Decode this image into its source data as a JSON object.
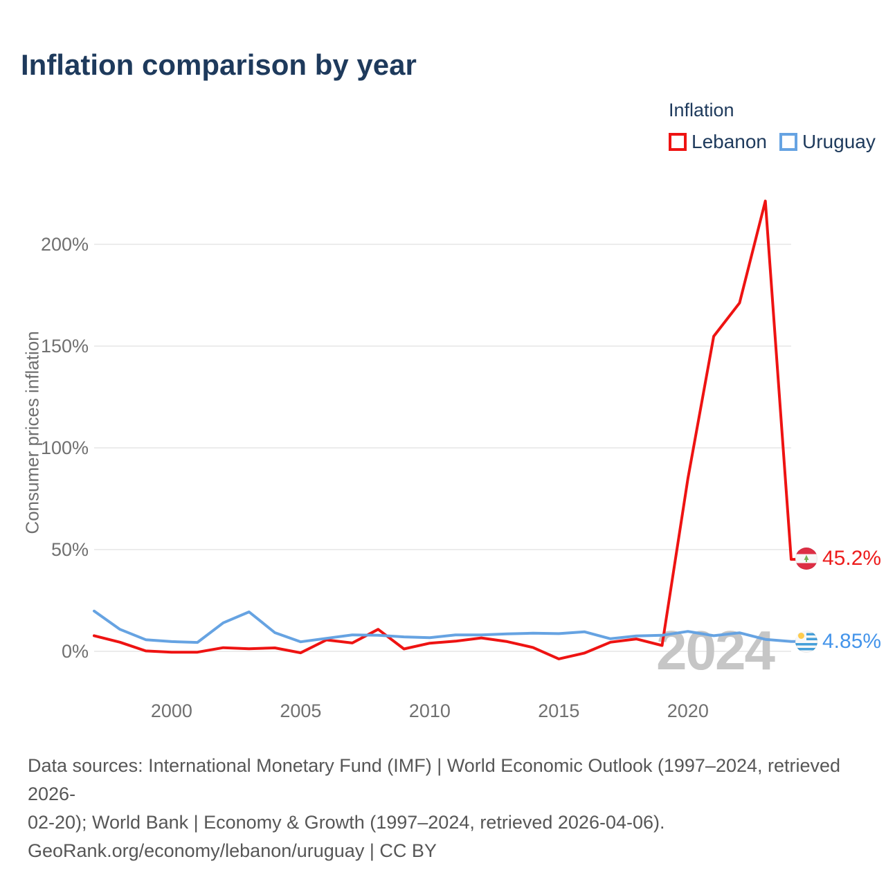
{
  "header": {
    "title": "Inflation comparison by year"
  },
  "legend": {
    "title": "Inflation",
    "items": [
      {
        "label": "Lebanon"
      },
      {
        "label": "Uruguay"
      }
    ]
  },
  "chart_data": {
    "type": "line",
    "title": "Inflation comparison by year",
    "ylabel": "Consumer prices inflation",
    "xlabel": "",
    "x": [
      1997,
      1998,
      1999,
      2000,
      2001,
      2002,
      2003,
      2004,
      2005,
      2006,
      2007,
      2008,
      2009,
      2010,
      2011,
      2012,
      2013,
      2014,
      2015,
      2016,
      2017,
      2018,
      2019,
      2020,
      2021,
      2022,
      2023,
      2024
    ],
    "series": [
      {
        "name": "Lebanon",
        "color": "#ee1312",
        "label_color": "#ed1c1c",
        "end_label": "45.2%",
        "values": [
          7.7,
          4.5,
          0.2,
          -0.4,
          -0.4,
          1.8,
          1.3,
          1.7,
          -0.7,
          5.6,
          4.1,
          10.8,
          1.2,
          4.0,
          5.0,
          6.6,
          4.8,
          1.9,
          -3.7,
          -0.8,
          4.5,
          6.1,
          2.9,
          84.9,
          154.8,
          171.2,
          221.3,
          45.2
        ]
      },
      {
        "name": "Uruguay",
        "color": "#66a3e2",
        "label_color": "#4494ea",
        "end_label": "4.85%",
        "values": [
          19.8,
          10.8,
          5.7,
          4.8,
          4.4,
          14.0,
          19.4,
          9.2,
          4.7,
          6.4,
          8.1,
          7.9,
          7.1,
          6.7,
          8.1,
          8.1,
          8.6,
          8.9,
          8.7,
          9.6,
          6.2,
          7.6,
          7.9,
          9.8,
          7.7,
          9.1,
          5.9,
          4.85
        ]
      }
    ],
    "y_ticks": [
      {
        "value": 0,
        "label": "0%"
      },
      {
        "value": 50,
        "label": "50%"
      },
      {
        "value": 100,
        "label": "100%"
      },
      {
        "value": 150,
        "label": "150%"
      },
      {
        "value": 200,
        "label": "200%"
      }
    ],
    "x_ticks": [
      {
        "value": 2000,
        "label": "2000"
      },
      {
        "value": 2005,
        "label": "2005"
      },
      {
        "value": 2010,
        "label": "2010"
      },
      {
        "value": 2015,
        "label": "2015"
      },
      {
        "value": 2020,
        "label": "2020"
      }
    ],
    "xlim": [
      1997,
      2024
    ],
    "ylim": [
      -20,
      230
    ],
    "grid": "horizontal",
    "legend_position": "top-right",
    "watermark": "2024",
    "gridline_color": "#ececec"
  },
  "footer": {
    "lines": [
      "Data sources: International Monetary Fund (IMF) | World Economic Outlook (1997–2024, retrieved 2026-",
      "02-20); World Bank | Economy & Growth (1997–2024, retrieved 2026-04-06).",
      "GeoRank.org/economy/lebanon/uruguay | CC BY"
    ]
  }
}
